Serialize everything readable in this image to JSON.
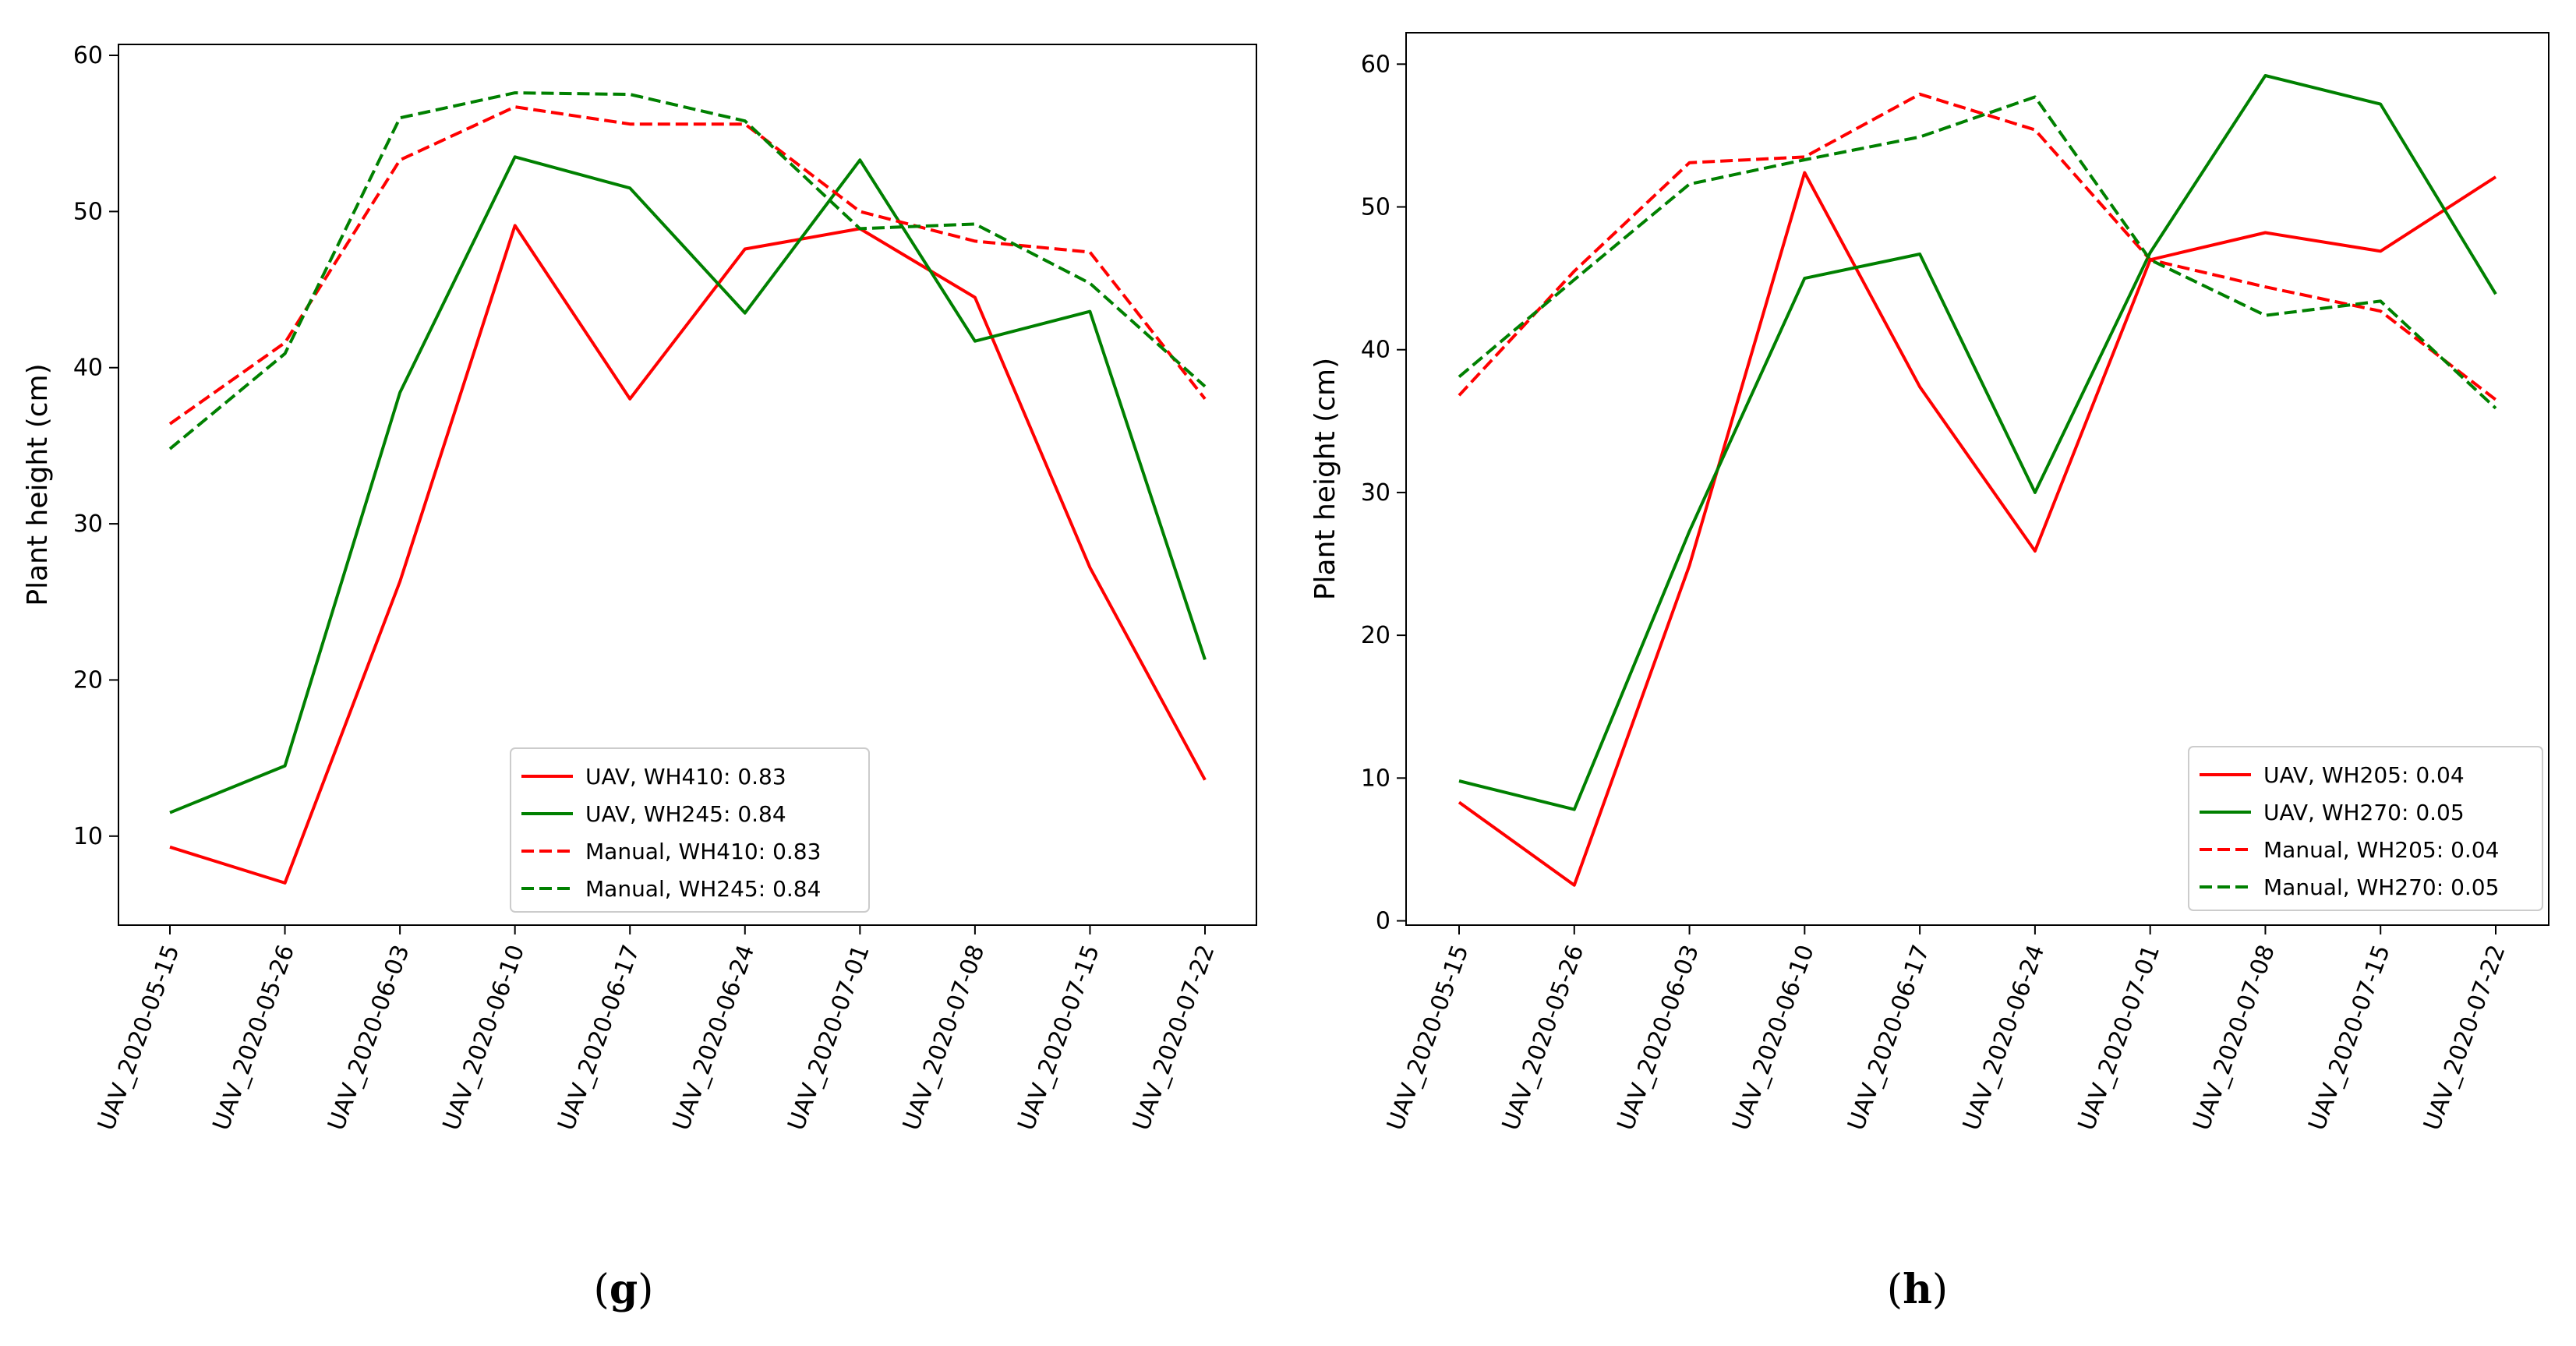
{
  "chart_data": [
    {
      "type": "line",
      "panel_label": "(g)",
      "ylabel": "Plant height (cm)",
      "categories": [
        "UAV_2020-05-15",
        "UAV_2020-05-26",
        "UAV_2020-06-03",
        "UAV_2020-06-10",
        "UAV_2020-06-17",
        "UAV_2020-06-24",
        "UAV_2020-07-01",
        "UAV_2020-07-08",
        "UAV_2020-07-15",
        "UAV_2020-07-22"
      ],
      "ylim": [
        4.3,
        60.7
      ],
      "yticks": [
        10,
        20,
        30,
        40,
        50,
        60
      ],
      "legend_position": "lower-right",
      "series": [
        {
          "name": "UAV, WH410: 0.83",
          "color": "#ff0000",
          "dash": "solid",
          "values": [
            9.3,
            7.0,
            26.3,
            49.1,
            38.0,
            47.6,
            48.9,
            44.5,
            27.2,
            13.6
          ]
        },
        {
          "name": "UAV, WH245: 0.84",
          "color": "#008000",
          "dash": "solid",
          "values": [
            11.5,
            14.5,
            38.4,
            53.5,
            51.5,
            43.5,
            53.3,
            41.7,
            43.6,
            21.3
          ]
        },
        {
          "name": "Manual, WH410: 0.83",
          "color": "#ff0000",
          "dash": "dashed",
          "values": [
            36.4,
            41.6,
            53.3,
            56.7,
            55.6,
            55.6,
            50.0,
            48.1,
            47.4,
            38.0
          ]
        },
        {
          "name": "Manual, WH245: 0.84",
          "color": "#008000",
          "dash": "dashed",
          "values": [
            34.8,
            40.9,
            56.0,
            57.6,
            57.5,
            55.8,
            48.9,
            49.2,
            45.4,
            38.8
          ]
        }
      ]
    },
    {
      "type": "line",
      "panel_label": "(h)",
      "ylabel": "Plant height (cm)",
      "categories": [
        "UAV_2020-05-15",
        "UAV_2020-05-26",
        "UAV_2020-06-03",
        "UAV_2020-06-10",
        "UAV_2020-06-17",
        "UAV_2020-06-24",
        "UAV_2020-07-01",
        "UAV_2020-07-08",
        "UAV_2020-07-15",
        "UAV_2020-07-22"
      ],
      "ylim": [
        -0.3,
        62.2
      ],
      "yticks": [
        0,
        10,
        20,
        30,
        40,
        50,
        60
      ],
      "legend_position": "lower-right",
      "series": [
        {
          "name": "UAV, WH205: 0.04",
          "color": "#ff0000",
          "dash": "solid",
          "values": [
            8.3,
            2.5,
            24.9,
            52.4,
            37.4,
            25.9,
            46.3,
            48.2,
            46.9,
            52.1
          ]
        },
        {
          "name": "UAV, WH270: 0.05",
          "color": "#008000",
          "dash": "solid",
          "values": [
            9.8,
            7.8,
            27.3,
            45.0,
            46.7,
            30.0,
            46.8,
            59.2,
            57.2,
            43.9
          ]
        },
        {
          "name": "Manual, WH205: 0.04",
          "color": "#ff0000",
          "dash": "dashed",
          "values": [
            36.8,
            45.5,
            53.1,
            53.5,
            57.9,
            55.4,
            46.3,
            44.4,
            42.7,
            36.5
          ]
        },
        {
          "name": "Manual, WH270: 0.05",
          "color": "#008000",
          "dash": "dashed",
          "values": [
            38.1,
            44.9,
            51.6,
            53.3,
            54.9,
            57.7,
            46.3,
            42.4,
            43.4,
            35.9
          ]
        }
      ]
    }
  ]
}
